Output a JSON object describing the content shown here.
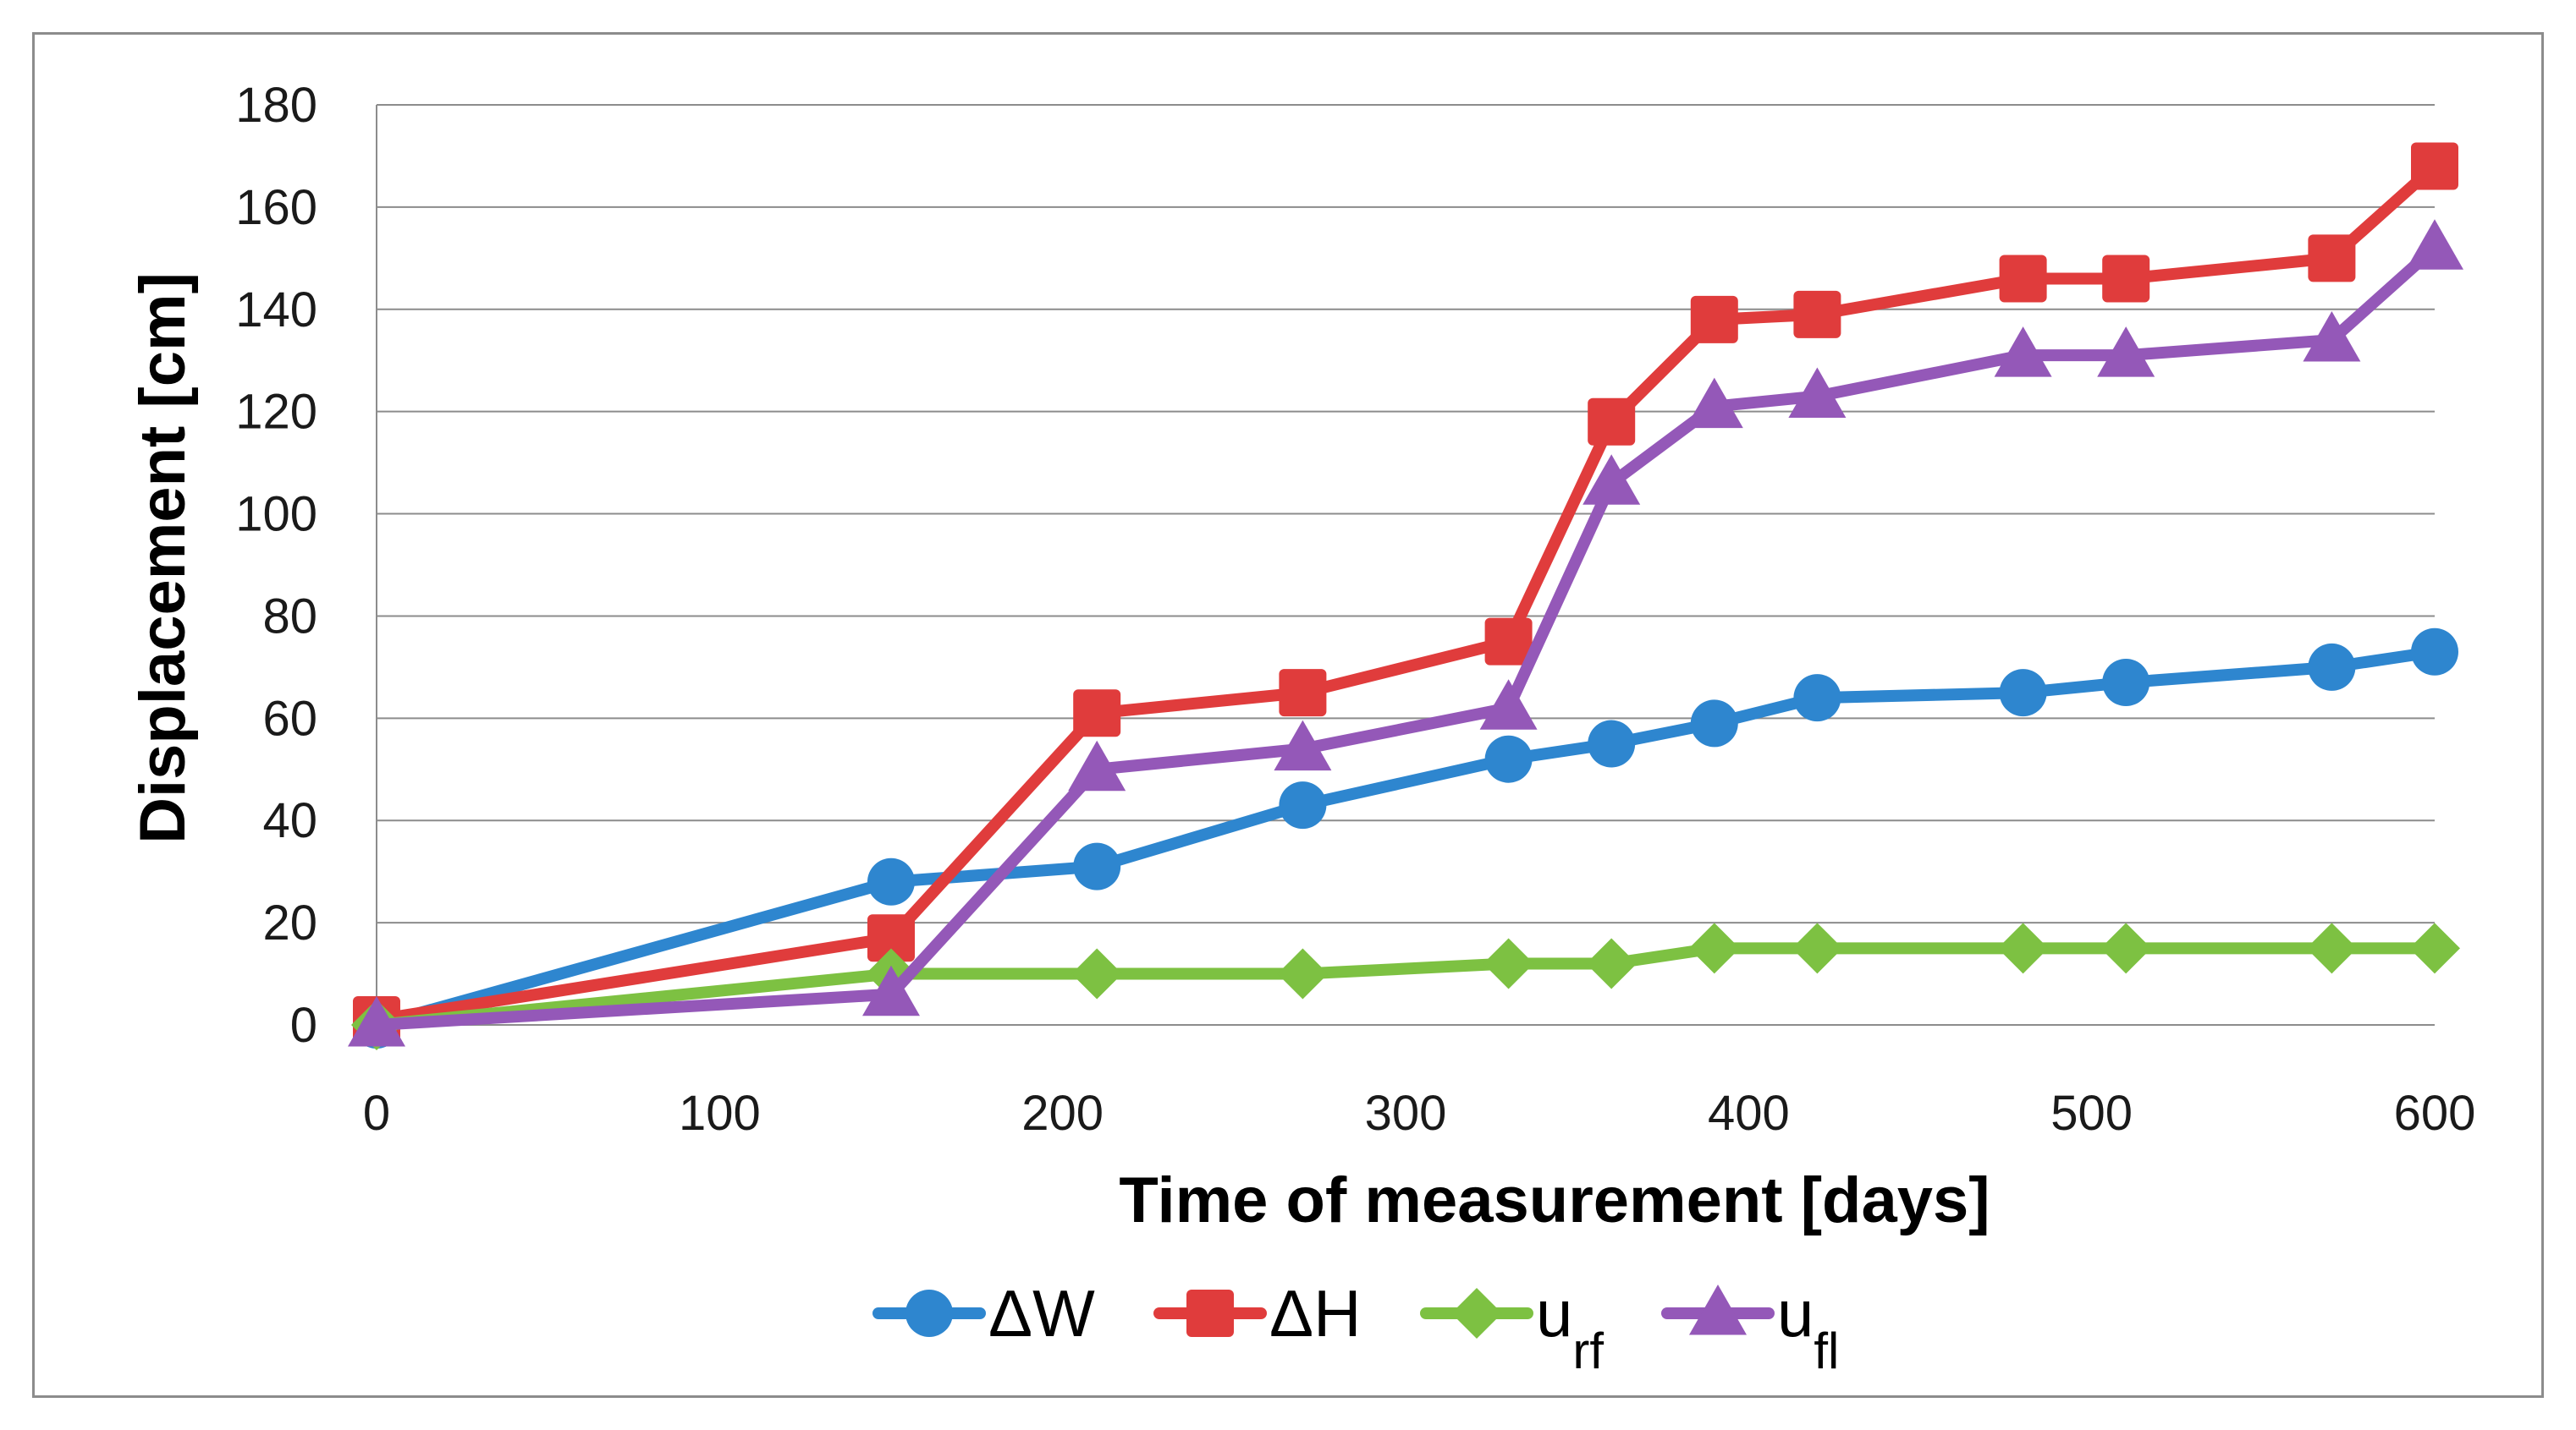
{
  "chart_data": {
    "type": "line",
    "title": "",
    "xlabel": "Time of measurement [days]",
    "ylabel": "Displacement [cm]",
    "xlim": [
      0,
      600
    ],
    "ylim": [
      0,
      180
    ],
    "xticks": [
      0,
      100,
      200,
      300,
      400,
      500,
      600
    ],
    "yticks": [
      0,
      20,
      40,
      60,
      80,
      100,
      120,
      140,
      160,
      180
    ],
    "grid": "horizontal",
    "legend_position": "bottom",
    "series": [
      {
        "name": "ΔW",
        "label_main": "ΔW",
        "label_sub": "",
        "color": "#2e86cf",
        "marker": "circle",
        "x": [
          0,
          150,
          210,
          270,
          330,
          360,
          390,
          420,
          480,
          510,
          570,
          600
        ],
        "y": [
          0,
          28,
          31,
          43,
          52,
          55,
          59,
          64,
          65,
          67,
          70,
          73
        ]
      },
      {
        "name": "ΔH",
        "label_main": "ΔH",
        "label_sub": "",
        "color": "#e03c3c",
        "marker": "square",
        "x": [
          0,
          150,
          210,
          270,
          330,
          360,
          390,
          420,
          480,
          510,
          570,
          600
        ],
        "y": [
          1,
          17,
          61,
          65,
          75,
          118,
          138,
          139,
          146,
          146,
          150,
          168
        ]
      },
      {
        "name": "urf",
        "label_main": "u",
        "label_sub": "rf",
        "color": "#7dc142",
        "marker": "diamond",
        "x": [
          0,
          150,
          210,
          270,
          330,
          360,
          390,
          420,
          480,
          510,
          570,
          600
        ],
        "y": [
          0,
          10,
          10,
          10,
          12,
          12,
          15,
          15,
          15,
          15,
          15,
          15
        ]
      },
      {
        "name": "ufl",
        "label_main": "u",
        "label_sub": "fl",
        "color": "#9458b8",
        "marker": "triangle",
        "x": [
          0,
          150,
          210,
          270,
          330,
          360,
          390,
          420,
          480,
          510,
          570,
          600
        ],
        "y": [
          0,
          6,
          50,
          54,
          62,
          106,
          121,
          123,
          131,
          131,
          134,
          152
        ]
      }
    ]
  }
}
